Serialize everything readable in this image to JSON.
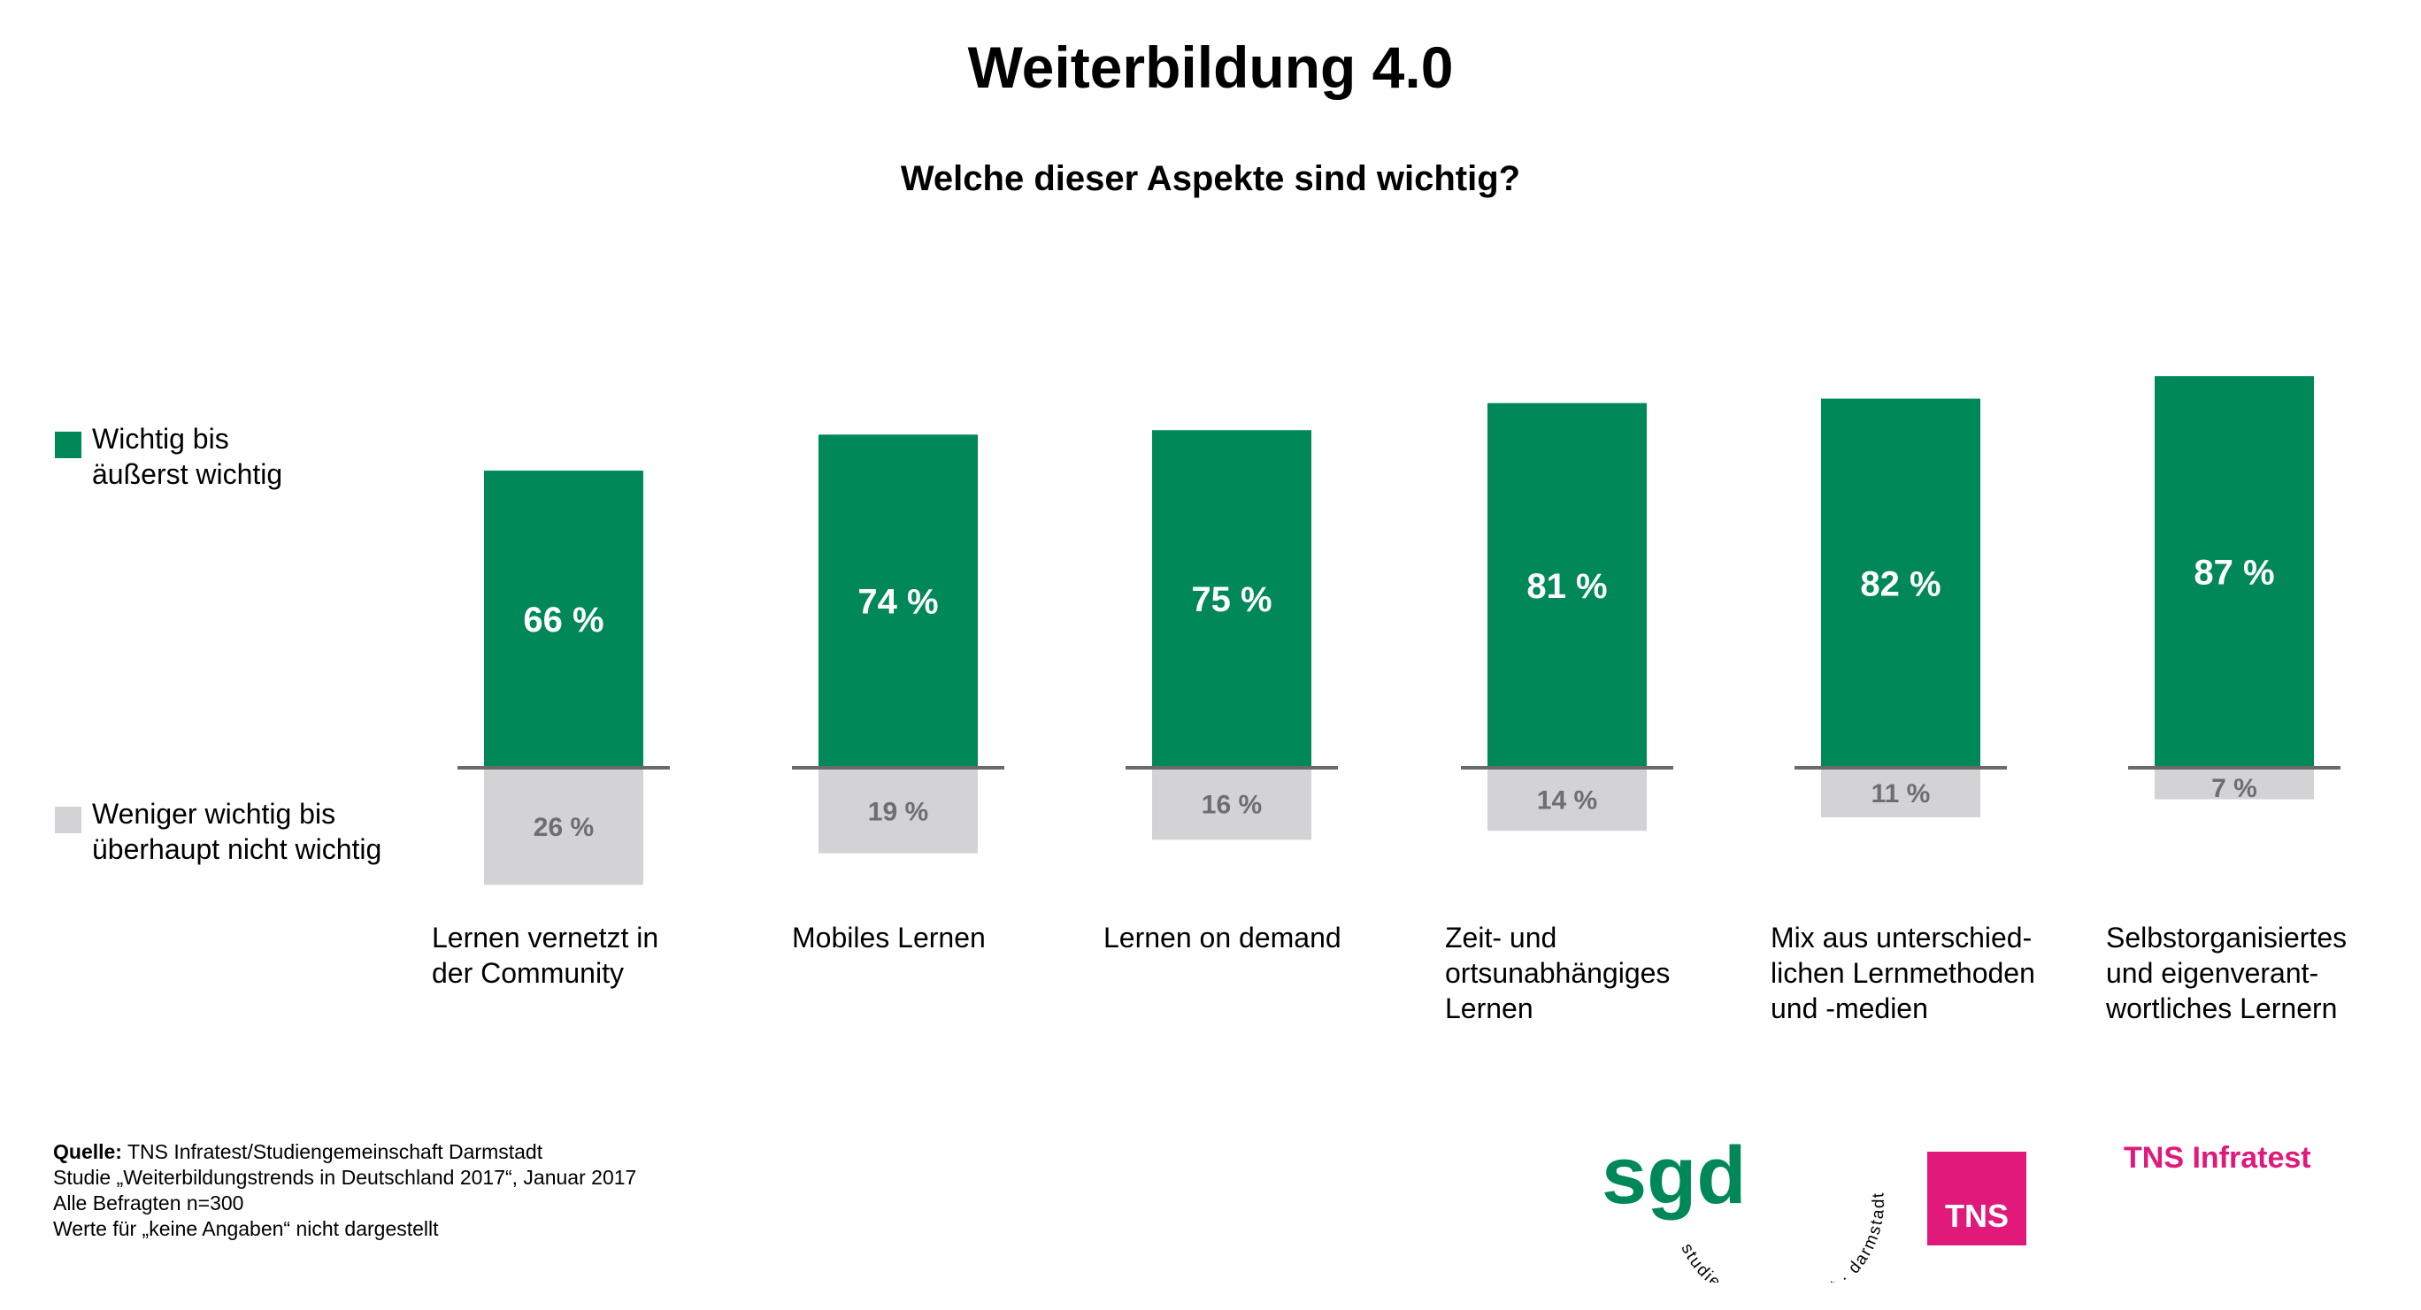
{
  "title": "Weiterbildung 4.0",
  "subtitle": "Welche dieser Aspekte sind wichtig?",
  "legend": {
    "positive": "Wichtig bis\näußerst wichtig",
    "negative": "Weniger wichtig bis\nüberhaupt nicht wichtig"
  },
  "colors": {
    "positive": "#008859",
    "negative": "#d3d3d5",
    "baseline": "#6a6a6a",
    "brand": "#e0197b"
  },
  "chart_data": {
    "type": "bar",
    "title": "Weiterbildung 4.0",
    "subtitle": "Welche dieser Aspekte sind wichtig?",
    "categories": [
      "Lernen vernetzt in\nder Community",
      "Mobiles Lernen",
      "Lernen on demand",
      "Zeit- und\nortsunabhängiges\nLernen",
      "Mix aus unterschied-\nlichen Lernmethoden\nund -medien",
      "Selbstorganisiertes\nund eigenverant-\nwortliches Lernern"
    ],
    "series": [
      {
        "name": "Wichtig bis äußerst wichtig",
        "values": [
          66,
          74,
          75,
          81,
          82,
          87
        ],
        "labels": [
          "66 %",
          "74 %",
          "75 %",
          "81 %",
          "82 %",
          "87 %"
        ]
      },
      {
        "name": "Weniger wichtig bis überhaupt nicht wichtig",
        "values": [
          26,
          19,
          16,
          14,
          11,
          7
        ],
        "labels": [
          "26 %",
          "19 %",
          "16 %",
          "14 %",
          "11 %",
          "7 %"
        ]
      }
    ],
    "layout": "diverging",
    "legend": "left"
  },
  "source": {
    "label": "Quelle:",
    "lines": [
      "TNS Infratest/Studiengemeinschaft Darmstadt",
      "Studie „Weiterbildungstrends in Deutschland 2017“, Januar 2017",
      "Alle Befragten n=300",
      "Werte für „keine Angaben“ nicht dargestellt"
    ]
  },
  "logos": {
    "sgd": "sgd",
    "sgd_ring": "studiengemeinschaft · darmstadt",
    "tns": "TNS",
    "tns_infratest": "TNS Infratest"
  }
}
